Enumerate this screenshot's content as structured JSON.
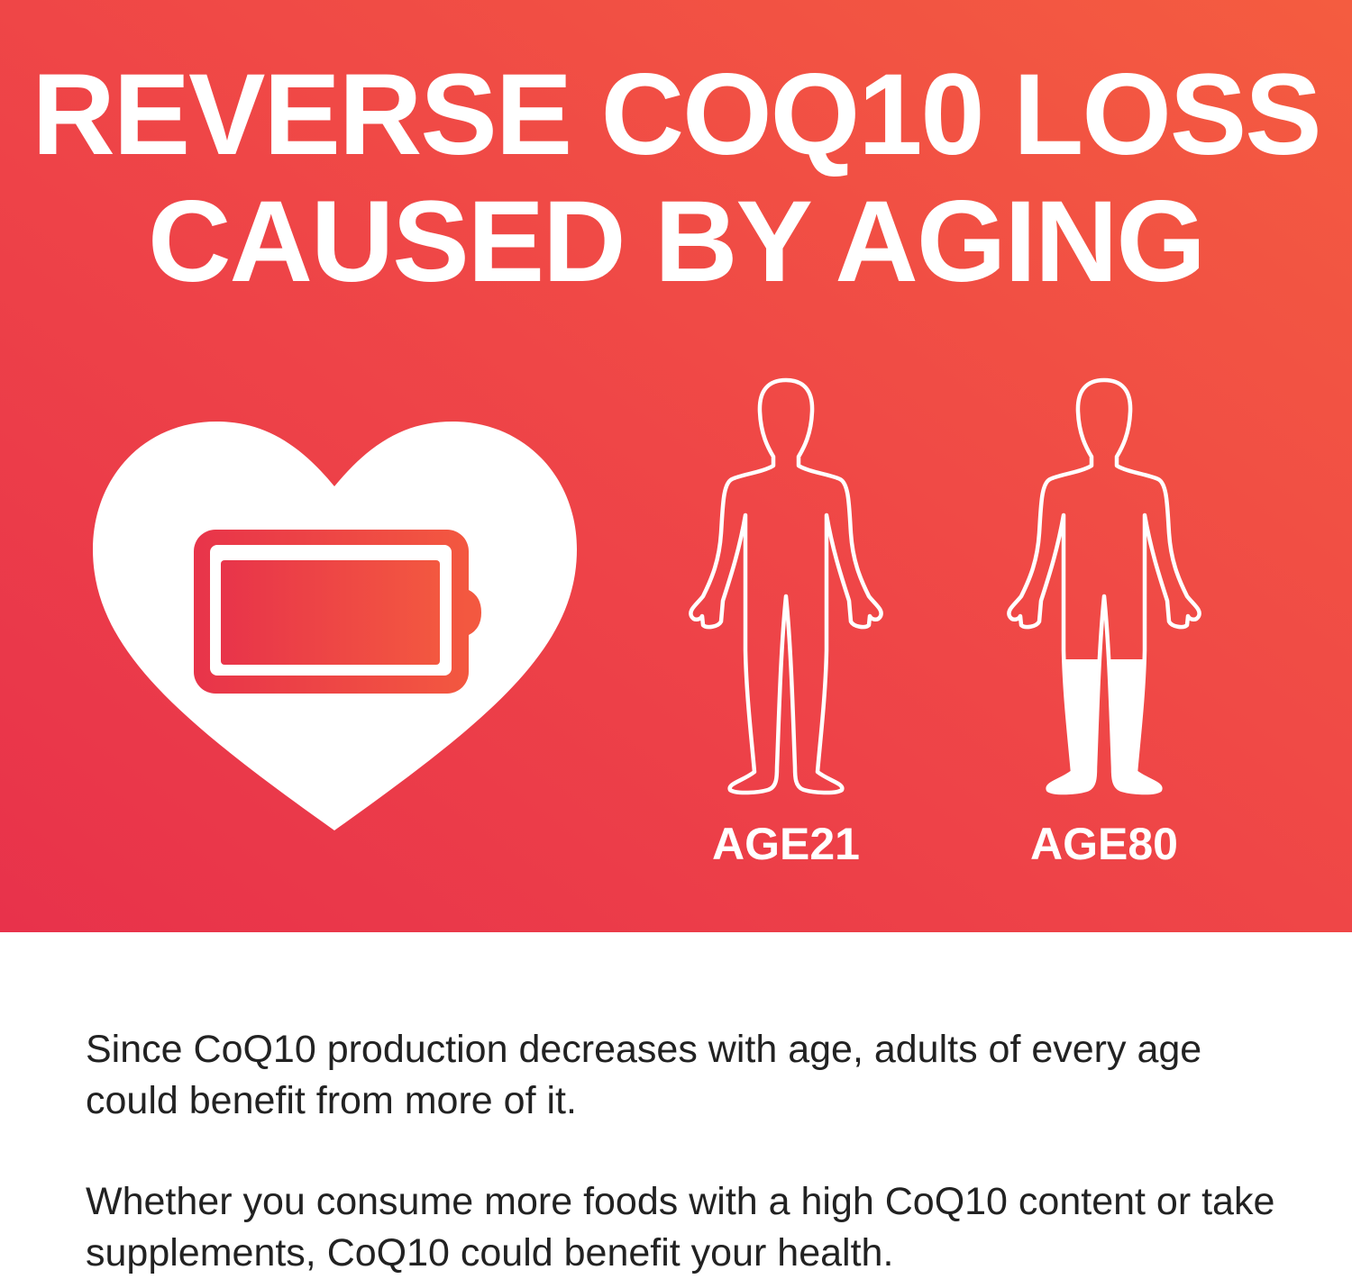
{
  "banner": {
    "title_line1": "REVERSE COQ10 LOSS",
    "title_line2": "CAUSED BY AGING",
    "colors": {
      "gradient_start": "#e8324b",
      "gradient_end": "#f45c40",
      "text": "#ffffff"
    },
    "icons": [
      "heart-icon",
      "battery-icon",
      "human-figure-icon"
    ],
    "figures": [
      {
        "label": "AGE21",
        "fill_level": 0
      },
      {
        "label": "AGE80",
        "fill_level": 0.33
      }
    ]
  },
  "body": {
    "paragraph1": "Since CoQ10 production decreases with age, adults of every age could benefit from more of it.",
    "paragraph2": "Whether you consume more foods with a high CoQ10 content or take supplements, CoQ10 could benefit your health."
  }
}
